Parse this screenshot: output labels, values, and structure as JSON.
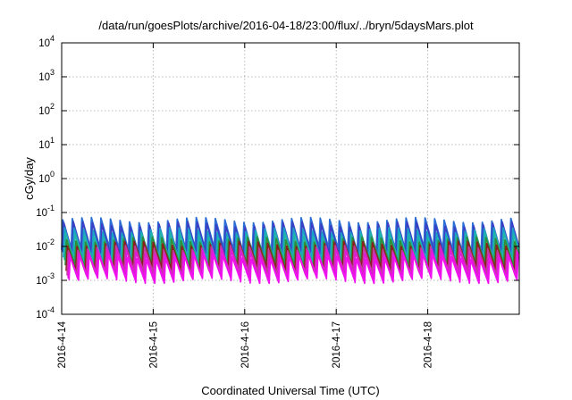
{
  "chart_data": {
    "type": "line",
    "title": "/data/run/goesPlots/archive/2016-04-18/23:00/flux/../bryn/5daysMars.plot",
    "xlabel": "Coordinated Universal Time (UTC)",
    "ylabel": "cGy/day",
    "yscale": "log",
    "ylim": [
      0.0001,
      10000
    ],
    "xlim": [
      "2016-04-14",
      "2016-04-19"
    ],
    "grid": true,
    "legend": "none",
    "x_ticks": [
      "2016-4-14",
      "2016-4-15",
      "2016-4-16",
      "2016-4-17",
      "2016-4-18"
    ],
    "y_ticks": [
      {
        "value": 0.0001,
        "base": "10",
        "exp": "-4"
      },
      {
        "value": 0.001,
        "base": "10",
        "exp": "-3"
      },
      {
        "value": 0.01,
        "base": "10",
        "exp": "-2"
      },
      {
        "value": 0.1,
        "base": "10",
        "exp": "-1"
      },
      {
        "value": 1,
        "base": "10",
        "exp": "0"
      },
      {
        "value": 10,
        "base": "10",
        "exp": "1"
      },
      {
        "value": 100,
        "base": "10",
        "exp": "2"
      },
      {
        "value": 1000,
        "base": "10",
        "exp": "3"
      },
      {
        "value": 10000,
        "base": "10",
        "exp": "4"
      }
    ],
    "cycle_hours": 2.5,
    "series": [
      {
        "color": "#2b6fd6",
        "peak": 0.06,
        "trough": 0.008
      },
      {
        "color": "#3a3fc4",
        "peak": 0.045,
        "trough": 0.006
      },
      {
        "color": "#1aa0c8",
        "peak": 0.03,
        "trough": 0.004
      },
      {
        "color": "#20b5a8",
        "peak": 0.022,
        "trough": 0.0035
      },
      {
        "color": "#2e8f3a",
        "peak": 0.016,
        "trough": 0.0028
      },
      {
        "color": "#8a1f1f",
        "peak": 0.012,
        "trough": 0.0022
      },
      {
        "color": "#c23a9c",
        "peak": 0.009,
        "trough": 0.0017
      },
      {
        "color": "#e01ad8",
        "peak": 0.007,
        "trough": 0.0013
      },
      {
        "color": "#f010f0",
        "peak": 0.005,
        "trough": 0.001
      }
    ]
  }
}
